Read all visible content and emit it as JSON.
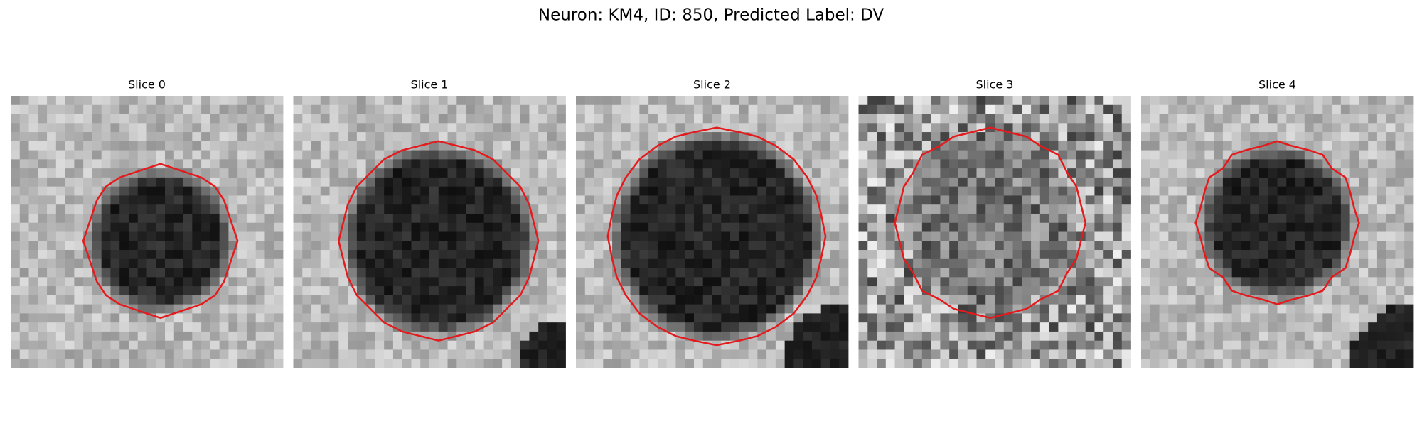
{
  "title": "Neuron: KM4, ID: 850, Predicted Label: DV",
  "panels": [
    {
      "title": "Slice 0"
    },
    {
      "title": "Slice 1"
    },
    {
      "title": "Slice 2"
    },
    {
      "title": "Slice 3"
    },
    {
      "title": "Slice 4"
    }
  ]
}
